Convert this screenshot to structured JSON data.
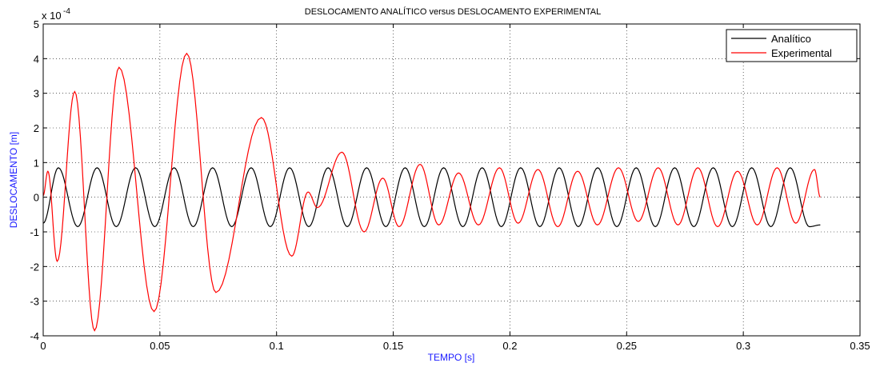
{
  "chart_data": {
    "type": "line",
    "title": "DESLOCAMENTO ANALÍTICO versus DESLOCAMENTO EXPERIMENTAL",
    "xlabel": "TEMPO [s]",
    "ylabel": "DESLOCAMENTO [m]",
    "y_multiplier_label": "x 10",
    "y_multiplier_exponent": "-4",
    "xlim": [
      0,
      0.35
    ],
    "ylim": [
      -4,
      5
    ],
    "x_ticks": [
      0,
      0.05,
      0.1,
      0.15,
      0.2,
      0.25,
      0.3,
      0.35
    ],
    "x_tick_labels": [
      "0",
      "0.05",
      "0.1",
      "0.15",
      "0.2",
      "0.25",
      "0.3",
      "0.35"
    ],
    "y_ticks": [
      -4,
      -3,
      -2,
      -1,
      0,
      1,
      2,
      3,
      4,
      5
    ],
    "y_tick_labels": [
      "-4",
      "-3",
      "-2",
      "-1",
      "0",
      "1",
      "2",
      "3",
      "4",
      "5"
    ],
    "grid": true,
    "legend_position": "top-right",
    "series": [
      {
        "name": "Analítico",
        "color": "#000000",
        "amplitude": 0.85,
        "period": 0.0165,
        "x_range": [
          0,
          0.333
        ],
        "values_description_points": [
          [
            0,
            -0.75
          ],
          [
            0.0065,
            0.85
          ],
          [
            0.0148,
            -0.85
          ],
          [
            0.0231,
            0.85
          ],
          [
            0.0313,
            -0.85
          ],
          [
            0.0396,
            0.85
          ],
          [
            0.0478,
            -0.85
          ],
          [
            0.0561,
            0.85
          ],
          [
            0.0643,
            -0.85
          ],
          [
            0.0726,
            0.85
          ],
          [
            0.0808,
            -0.85
          ],
          [
            0.0891,
            0.85
          ],
          [
            0.0973,
            -0.85
          ],
          [
            0.1056,
            0.85
          ],
          [
            0.1138,
            -0.85
          ],
          [
            0.1221,
            0.85
          ],
          [
            0.1303,
            -0.85
          ],
          [
            0.1386,
            0.85
          ],
          [
            0.1468,
            -0.85
          ],
          [
            0.1551,
            0.85
          ],
          [
            0.1633,
            -0.85
          ],
          [
            0.1716,
            0.85
          ],
          [
            0.1798,
            -0.85
          ],
          [
            0.1881,
            0.85
          ],
          [
            0.1963,
            -0.85
          ],
          [
            0.2046,
            0.85
          ],
          [
            0.2128,
            -0.85
          ],
          [
            0.2211,
            0.85
          ],
          [
            0.2293,
            -0.85
          ],
          [
            0.2376,
            0.85
          ],
          [
            0.2458,
            -0.85
          ],
          [
            0.2541,
            0.85
          ],
          [
            0.2623,
            -0.85
          ],
          [
            0.2706,
            0.85
          ],
          [
            0.2788,
            -0.85
          ],
          [
            0.2871,
            0.85
          ],
          [
            0.2953,
            -0.85
          ],
          [
            0.3036,
            0.85
          ],
          [
            0.3118,
            -0.85
          ],
          [
            0.3201,
            0.85
          ],
          [
            0.3283,
            -0.85
          ],
          [
            0.333,
            -0.8
          ]
        ]
      },
      {
        "name": "Experimental",
        "color": "#ff0000",
        "points": [
          [
            0,
            0.05
          ],
          [
            0.002,
            0.75
          ],
          [
            0.006,
            -1.85
          ],
          [
            0.0135,
            3.05
          ],
          [
            0.022,
            -3.85
          ],
          [
            0.0325,
            3.75
          ],
          [
            0.0475,
            -3.3
          ],
          [
            0.0615,
            4.15
          ],
          [
            0.074,
            -2.75
          ],
          [
            0.0935,
            2.3
          ],
          [
            0.1065,
            -1.7
          ],
          [
            0.1135,
            0.15
          ],
          [
            0.1175,
            -0.3
          ],
          [
            0.128,
            1.3
          ],
          [
            0.1375,
            -1.0
          ],
          [
            0.1455,
            0.55
          ],
          [
            0.1525,
            -0.85
          ],
          [
            0.1615,
            0.95
          ],
          [
            0.1695,
            -0.8
          ],
          [
            0.178,
            0.7
          ],
          [
            0.1865,
            -0.8
          ],
          [
            0.1955,
            0.85
          ],
          [
            0.2035,
            -0.75
          ],
          [
            0.212,
            0.8
          ],
          [
            0.2205,
            -0.85
          ],
          [
            0.229,
            0.75
          ],
          [
            0.2375,
            -0.8
          ],
          [
            0.2465,
            0.85
          ],
          [
            0.255,
            -0.7
          ],
          [
            0.2635,
            0.85
          ],
          [
            0.272,
            -0.8
          ],
          [
            0.2805,
            0.85
          ],
          [
            0.289,
            -0.85
          ],
          [
            0.2975,
            0.75
          ],
          [
            0.306,
            -0.8
          ],
          [
            0.3145,
            0.85
          ],
          [
            0.3225,
            -0.75
          ],
          [
            0.3305,
            0.8
          ],
          [
            0.333,
            0.0
          ]
        ]
      }
    ]
  }
}
